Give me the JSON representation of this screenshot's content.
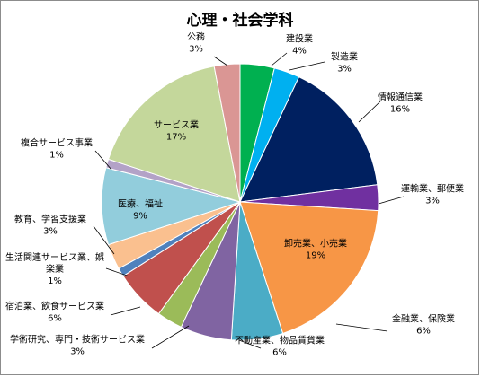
{
  "chart_data": {
    "type": "pie",
    "title": "心理・社会学科",
    "start": "12 o'clock, clockwise",
    "slices": [
      {
        "name": "建設業",
        "value": 4,
        "label": "4%",
        "color": "#00b050"
      },
      {
        "name": "製造業",
        "value": 3,
        "label": "3%",
        "color": "#00b0f0"
      },
      {
        "name": "情報通信業",
        "value": 16,
        "label": "16%",
        "color": "#002060"
      },
      {
        "name": "運輸業、郵便業",
        "value": 3,
        "label": "3%",
        "color": "#7030a0"
      },
      {
        "name": "卸売業、小売業",
        "value": 19,
        "label": "19%",
        "color": "#f79646"
      },
      {
        "name": "金融業、保険業",
        "value": 6,
        "label": "6%",
        "color": "#4bacc6"
      },
      {
        "name": "不動産業、物品賃貸業",
        "value": 6,
        "label": "6%",
        "color": "#8064a2"
      },
      {
        "name": "学術研究、専門・技術サービス業",
        "value": 3,
        "label": "3%",
        "color": "#9bbb59"
      },
      {
        "name": "宿泊業、飲食サービス業",
        "value": 6,
        "label": "6%",
        "color": "#c0504d"
      },
      {
        "name": "生活関連サービス業、娯楽業",
        "value": 1,
        "label": "1%",
        "color": "#4f81bd"
      },
      {
        "name": "教育、学習支援業",
        "value": 3,
        "label": "3%",
        "color": "#fac08f"
      },
      {
        "name": "医療、福祉",
        "value": 9,
        "label": "9%",
        "color": "#92cddc"
      },
      {
        "name": "複合サービス事業",
        "value": 1,
        "label": "1%",
        "color": "#b3a2c7"
      },
      {
        "name": "サービス業",
        "value": 17,
        "label": "17%",
        "color": "#c4d79b"
      },
      {
        "name": "公務",
        "value": 3,
        "label": "3%",
        "color": "#da9694"
      }
    ]
  }
}
